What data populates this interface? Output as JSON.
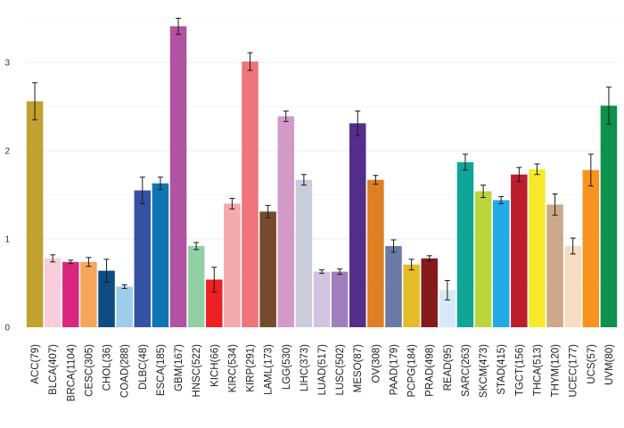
{
  "chart_data": {
    "type": "bar",
    "title": "",
    "xlabel": "",
    "ylabel": "",
    "ylim": [
      0,
      3.5
    ],
    "yticks": [
      0,
      1,
      2,
      3
    ],
    "grid": true,
    "error_bars": true,
    "categories": [
      "ACC(79)",
      "BLCA(407)",
      "BRCA(1104)",
      "CESC(305)",
      "CHOL(36)",
      "COAD(288)",
      "DLBC(48)",
      "ESCA(185)",
      "GBM(167)",
      "HNSC(522)",
      "KICH(66)",
      "KIRC(534)",
      "KIRP(291)",
      "LAML(173)",
      "LGG(530)",
      "LIHC(373)",
      "LUAD(517)",
      "LUSC(502)",
      "MESO(87)",
      "OV(308)",
      "PAAD(179)",
      "PCPG(184)",
      "PRAD(498)",
      "READ(95)",
      "SARC(263)",
      "SKCM(473)",
      "STAD(415)",
      "TGCT(156)",
      "THCA(513)",
      "THYM(120)",
      "UCEC(177)",
      "UCS(57)",
      "UVM(80)"
    ],
    "values": [
      2.56,
      0.78,
      0.74,
      0.74,
      0.64,
      0.46,
      1.55,
      1.63,
      3.41,
      0.92,
      0.54,
      1.4,
      3.01,
      1.31,
      2.39,
      1.67,
      0.63,
      0.63,
      2.31,
      1.67,
      0.92,
      0.71,
      0.78,
      0.42,
      1.87,
      1.54,
      1.44,
      1.73,
      1.79,
      1.39,
      0.92,
      1.78,
      2.51
    ],
    "errors": [
      0.21,
      0.04,
      0.02,
      0.05,
      0.13,
      0.02,
      0.15,
      0.07,
      0.09,
      0.04,
      0.14,
      0.06,
      0.1,
      0.07,
      0.06,
      0.06,
      0.02,
      0.03,
      0.14,
      0.05,
      0.07,
      0.06,
      0.03,
      0.11,
      0.09,
      0.07,
      0.04,
      0.08,
      0.06,
      0.12,
      0.09,
      0.18,
      0.21
    ],
    "colors": [
      "#C1A12F",
      "#F9CDD9",
      "#D9277D",
      "#F5A65B",
      "#0F4C81",
      "#9DCDEA",
      "#3551A4",
      "#0E74B3",
      "#B152A3",
      "#92CFA5",
      "#ED2024",
      "#F4A9AE",
      "#EF747B",
      "#754B2C",
      "#D49AC7",
      "#C8CCDB",
      "#D4C3DF",
      "#A17FBC",
      "#532E8A",
      "#DF7F22",
      "#6C7BA5",
      "#E4BC28",
      "#861B1C",
      "#D8E9F7",
      "#10A597",
      "#BBD53D",
      "#23A9E3",
      "#BD1E2E",
      "#F7EA2A",
      "#CBA98A",
      "#F6DCC0",
      "#F7931E",
      "#0D914B"
    ]
  }
}
